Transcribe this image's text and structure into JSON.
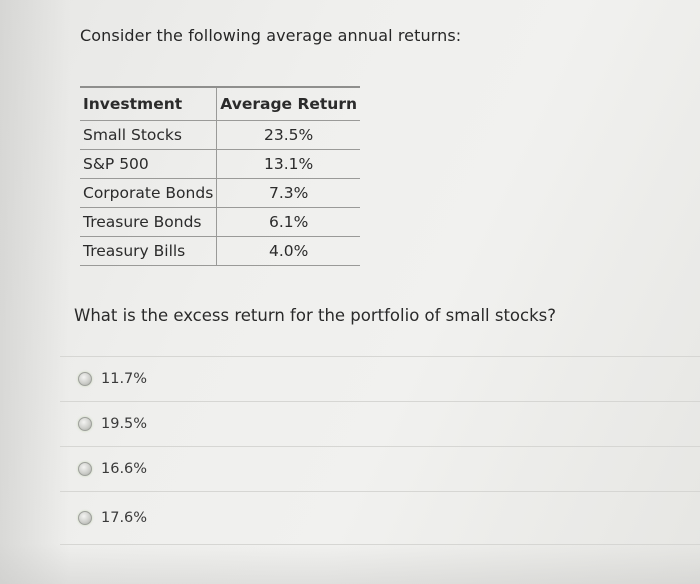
{
  "intro": "Consider the following average annual returns:",
  "table": {
    "headers": [
      "Investment",
      "Average Return"
    ],
    "rows": [
      {
        "investment": "Small Stocks",
        "return": "23.5%"
      },
      {
        "investment": "S&P 500",
        "return": "13.1%"
      },
      {
        "investment": "Corporate Bonds",
        "return": "7.3%"
      },
      {
        "investment": "Treasure Bonds",
        "return": "6.1%"
      },
      {
        "investment": "Treasury Bills",
        "return": "4.0%"
      }
    ]
  },
  "question": "What is the excess return for the portfolio of small stocks?",
  "options": [
    {
      "label": "11.7%",
      "selected": false
    },
    {
      "label": "19.5%",
      "selected": false
    },
    {
      "label": "16.6%",
      "selected": false
    },
    {
      "label": "17.6%",
      "selected": false
    }
  ]
}
